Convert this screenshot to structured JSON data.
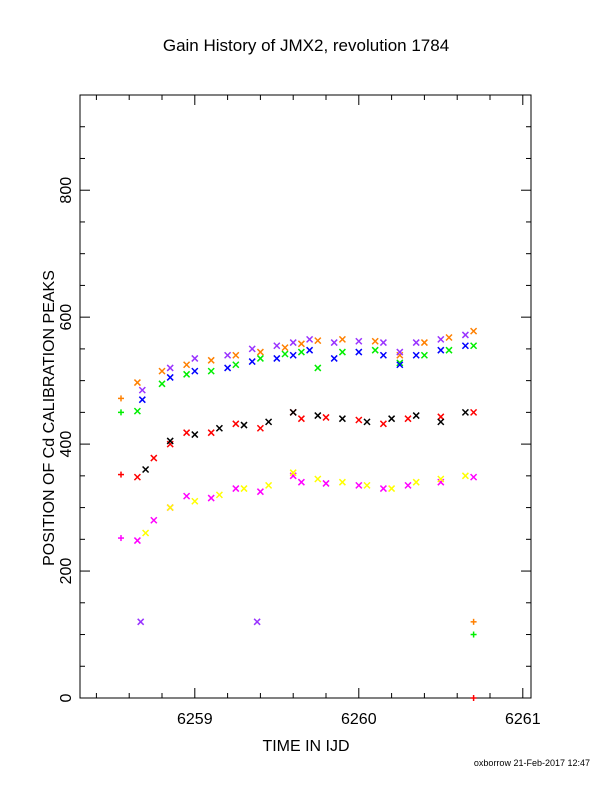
{
  "chart_data": {
    "type": "scatter",
    "title": "Gain History of JMX2, revolution 1784",
    "xlabel": "TIME IN IJD",
    "ylabel": "POSITION OF Cd CALIBRATION PEAKS",
    "xlim": [
      6258.3,
      6261.05
    ],
    "ylim": [
      0,
      950
    ],
    "xticks": [
      6259,
      6260,
      6261
    ],
    "yticks": [
      0,
      200,
      400,
      600,
      800
    ],
    "grid": false,
    "series": [
      {
        "color": "#ff8000",
        "marker": "x",
        "x": [
          6258.65,
          6258.8,
          6258.95,
          6259.1,
          6259.25,
          6259.4,
          6259.55,
          6259.65,
          6259.75,
          6259.9,
          6260.1,
          6260.25,
          6260.4,
          6260.55,
          6260.7
        ],
        "y": [
          497,
          515,
          525,
          532,
          540,
          545,
          552,
          558,
          563,
          565,
          562,
          540,
          560,
          568,
          578
        ]
      },
      {
        "color": "#00ee00",
        "marker": "x",
        "x": [
          6258.65,
          6258.8,
          6258.95,
          6259.1,
          6259.25,
          6259.4,
          6259.55,
          6259.65,
          6259.75,
          6259.9,
          6260.1,
          6260.25,
          6260.4,
          6260.55,
          6260.7
        ],
        "y": [
          452,
          495,
          510,
          515,
          525,
          535,
          542,
          545,
          520,
          545,
          548,
          528,
          540,
          548,
          555
        ]
      },
      {
        "color": "#0000ff",
        "marker": "x",
        "x": [
          6258.68,
          6258.85,
          6259.0,
          6259.2,
          6259.35,
          6259.5,
          6259.6,
          6259.7,
          6259.85,
          6260.0,
          6260.15,
          6260.25,
          6260.35,
          6260.5,
          6260.65
        ],
        "y": [
          470,
          505,
          515,
          520,
          530,
          535,
          540,
          548,
          535,
          545,
          540,
          525,
          540,
          548,
          555
        ]
      },
      {
        "color": "#9933ff",
        "marker": "x",
        "x": [
          6258.68,
          6258.85,
          6259.0,
          6259.2,
          6259.35,
          6259.5,
          6259.6,
          6259.7,
          6259.85,
          6260.0,
          6260.15,
          6260.25,
          6260.35,
          6260.5,
          6260.65
        ],
        "y": [
          485,
          520,
          535,
          540,
          550,
          555,
          560,
          565,
          560,
          562,
          560,
          545,
          560,
          565,
          572
        ]
      },
      {
        "color": "#ff0000",
        "marker": "x",
        "x": [
          6258.65,
          6258.75,
          6258.85,
          6258.95,
          6259.1,
          6259.25,
          6259.4,
          6259.6,
          6259.65,
          6259.8,
          6260.0,
          6260.15,
          6260.3,
          6260.5,
          6260.7
        ],
        "y": [
          348,
          378,
          400,
          418,
          418,
          432,
          425,
          450,
          440,
          442,
          438,
          432,
          440,
          443,
          450
        ]
      },
      {
        "color": "#000000",
        "marker": "x",
        "x": [
          6258.7,
          6258.85,
          6259.0,
          6259.15,
          6259.3,
          6259.45,
          6259.6,
          6259.75,
          6259.9,
          6260.05,
          6260.2,
          6260.35,
          6260.5,
          6260.65
        ],
        "y": [
          360,
          405,
          415,
          425,
          430,
          435,
          450,
          445,
          440,
          435,
          440,
          445,
          435,
          450
        ]
      },
      {
        "color": "#ff00ff",
        "marker": "x",
        "x": [
          6258.65,
          6258.75,
          6258.85,
          6258.95,
          6259.1,
          6259.25,
          6259.4,
          6259.6,
          6259.65,
          6259.8,
          6260.0,
          6260.15,
          6260.3,
          6260.5,
          6260.7
        ],
        "y": [
          248,
          280,
          300,
          318,
          315,
          330,
          325,
          350,
          340,
          338,
          335,
          330,
          335,
          340,
          348
        ]
      },
      {
        "color": "#ffff00",
        "marker": "x",
        "x": [
          6258.7,
          6258.85,
          6259.0,
          6259.15,
          6259.3,
          6259.45,
          6259.6,
          6259.75,
          6259.9,
          6260.05,
          6260.2,
          6260.35,
          6260.5,
          6260.65
        ],
        "y": [
          260,
          300,
          310,
          320,
          330,
          335,
          355,
          345,
          340,
          335,
          330,
          340,
          345,
          350
        ]
      },
      {
        "color": "#9933ff",
        "marker": "x",
        "x": [
          6258.67,
          6259.38
        ],
        "y": [
          120,
          120
        ]
      },
      {
        "color": "#ff8000",
        "marker": "+",
        "x": [
          6258.55,
          6260.7
        ],
        "y": [
          472,
          120
        ]
      },
      {
        "color": "#00ee00",
        "marker": "+",
        "x": [
          6258.55,
          6260.7
        ],
        "y": [
          450,
          100
        ]
      },
      {
        "color": "#ff0000",
        "marker": "+",
        "x": [
          6258.55,
          6260.7
        ],
        "y": [
          352,
          0
        ]
      },
      {
        "color": "#ff00ff",
        "marker": "+",
        "x": [
          6258.55
        ],
        "y": [
          252
        ]
      }
    ]
  },
  "footer": "oxborrow 21-Feb-2017 12:47"
}
